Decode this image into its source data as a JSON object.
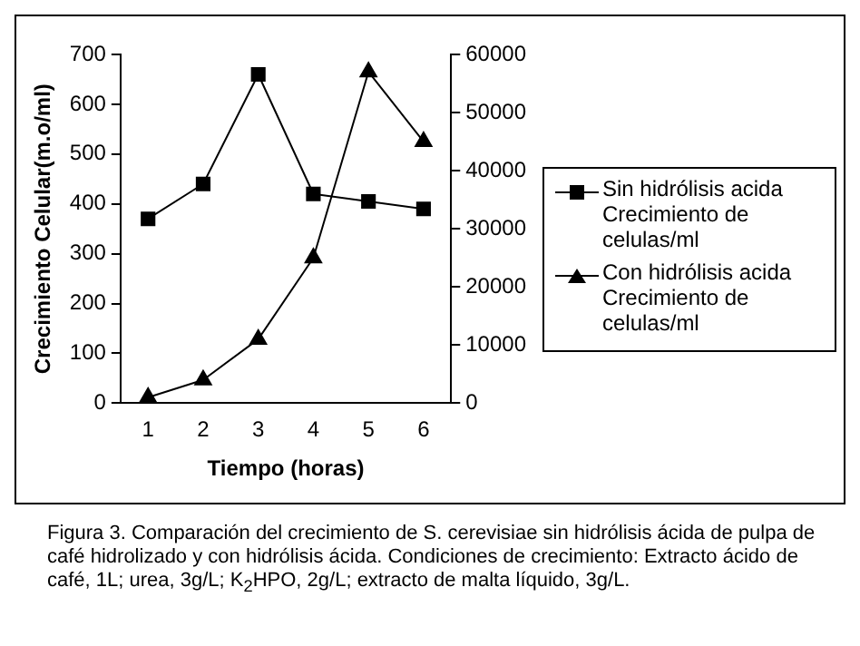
{
  "chart_data": {
    "type": "line",
    "xlabel": "Tiempo (horas)",
    "ylabel": "Crecimiento Celular(m.o/ml)",
    "categories": [
      "1",
      "2",
      "3",
      "4",
      "5",
      "6"
    ],
    "series": [
      {
        "name": "Sin hidrólisis acida Crecimiento de celulas/ml",
        "color": "#000000",
        "marker": "square",
        "values": [
          370,
          440,
          660,
          420,
          405,
          390
        ]
      },
      {
        "name": "Con hidrólisis acida Crecimiento de celulas/ml",
        "color": "#000000",
        "marker": "triangle",
        "axis": "y2",
        "values": [
          1000,
          4000,
          11000,
          25000,
          57000,
          45000
        ]
      }
    ],
    "ylim": [
      0,
      700
    ],
    "yticks": [
      0,
      100,
      200,
      300,
      400,
      500,
      600,
      700
    ],
    "y2lim": [
      0,
      60000
    ],
    "y2ticks": [
      0,
      10000,
      20000,
      30000,
      40000,
      50000,
      60000
    ],
    "grid": false,
    "legend": "right",
    "line_style": "solid",
    "annotations": [
      "Figura 3. Comparación del crecimiento de S. cerevisiae sin hidrólisis ácida de pulpa de café hidrolizado y con hidrólisis ácida. Condiciones de crecimiento: Extracto ácido de café, 1L; urea, 3g/L; K$_{2}$HPO, 2g/L; extracto de malta líquido, 3g/L."
    ]
  }
}
